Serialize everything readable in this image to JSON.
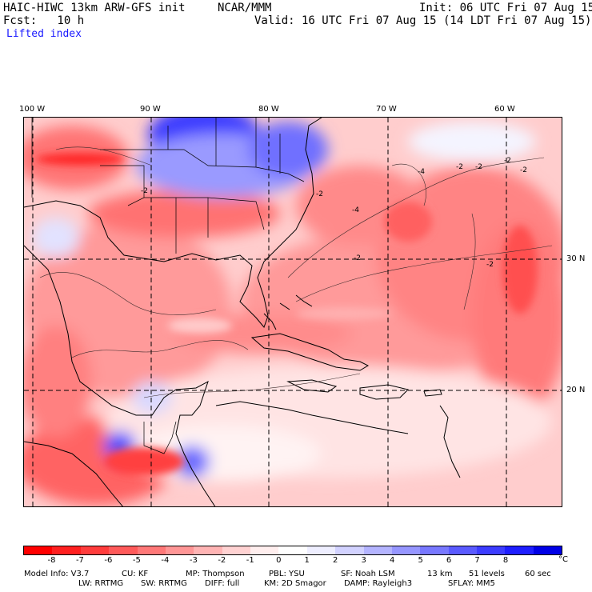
{
  "header": {
    "model_title": "HAIC-HIWC 13km ARW-GFS init",
    "org": "NCAR/MMM",
    "init": "Init: 06 UTC Fri 07 Aug 15",
    "fcst": "Fcst:   10 h",
    "valid": "Valid: 16 UTC Fri 07 Aug 15 (14 LDT Fri 07 Aug 15)",
    "field": "Lifted index"
  },
  "map": {
    "lon_labels": [
      "100 W",
      "90 W",
      "80 W",
      "70 W",
      "60 W"
    ],
    "lat_labels": [
      "30 N",
      "20 N"
    ],
    "contour_labels": [
      "-2",
      "-2",
      "-2",
      "-2",
      "-4",
      "-4",
      "-2",
      "-2",
      "-2",
      "-2"
    ]
  },
  "colorbar": {
    "unit": "°C",
    "ticks": [
      "-8",
      "-7",
      "-6",
      "-5",
      "-4",
      "-3",
      "-2",
      "-1",
      "0",
      "1",
      "2",
      "3",
      "4",
      "5",
      "6",
      "7",
      "8"
    ],
    "colors": [
      "#ff0000",
      "#ff2020",
      "#ff3c3c",
      "#ff5a5a",
      "#ff7878",
      "#ff9696",
      "#ffb4b4",
      "#ffd2d2",
      "#ffeeee",
      "#ffffff",
      "#eeeeff",
      "#d2d2ff",
      "#b4b4ff",
      "#9696ff",
      "#7878ff",
      "#5a5aff",
      "#3c3cff",
      "#1e1eff",
      "#0000e6"
    ]
  },
  "model_info": {
    "line1": [
      "Model Info: V3.7",
      "CU: KF",
      "MP: Thompson",
      "PBL: YSU",
      "SF: Noah LSM",
      "13 km",
      "51 levels",
      "60 sec"
    ],
    "line2": [
      "LW: RRTMG",
      "SW: RRTMG",
      "DIFF: full",
      "KM: 2D Smagor",
      "DAMP: Rayleigh3",
      "SFLAY: MM5"
    ]
  }
}
